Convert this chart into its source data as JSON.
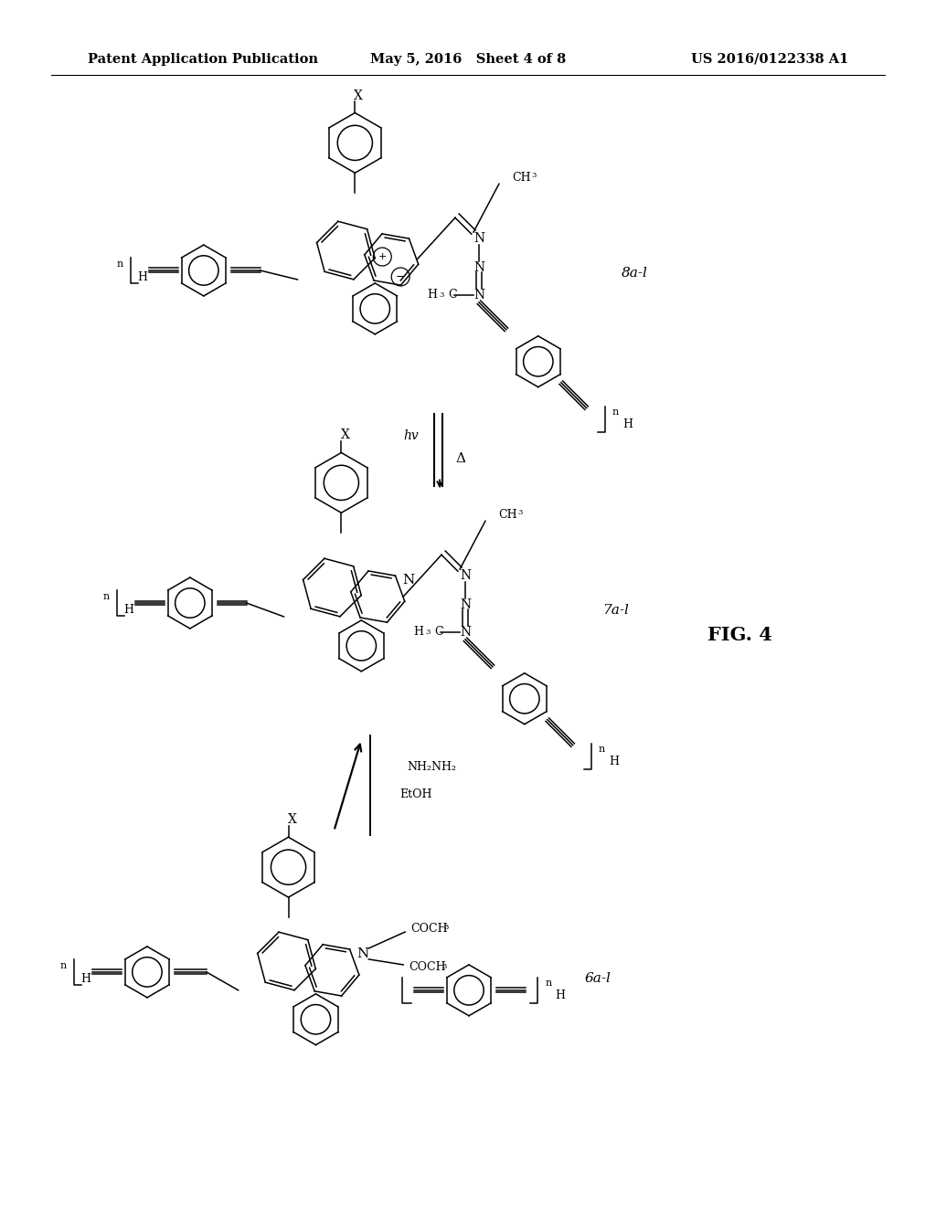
{
  "background_color": "#ffffff",
  "header_left": "Patent Application Publication",
  "header_center": "May 5, 2016   Sheet 4 of 8",
  "header_right": "US 2016/0122338 A1",
  "figure_label": "FIG. 4",
  "header_fontsize": 10.5,
  "label_fontsize": 11,
  "fig_label_fontsize": 15
}
